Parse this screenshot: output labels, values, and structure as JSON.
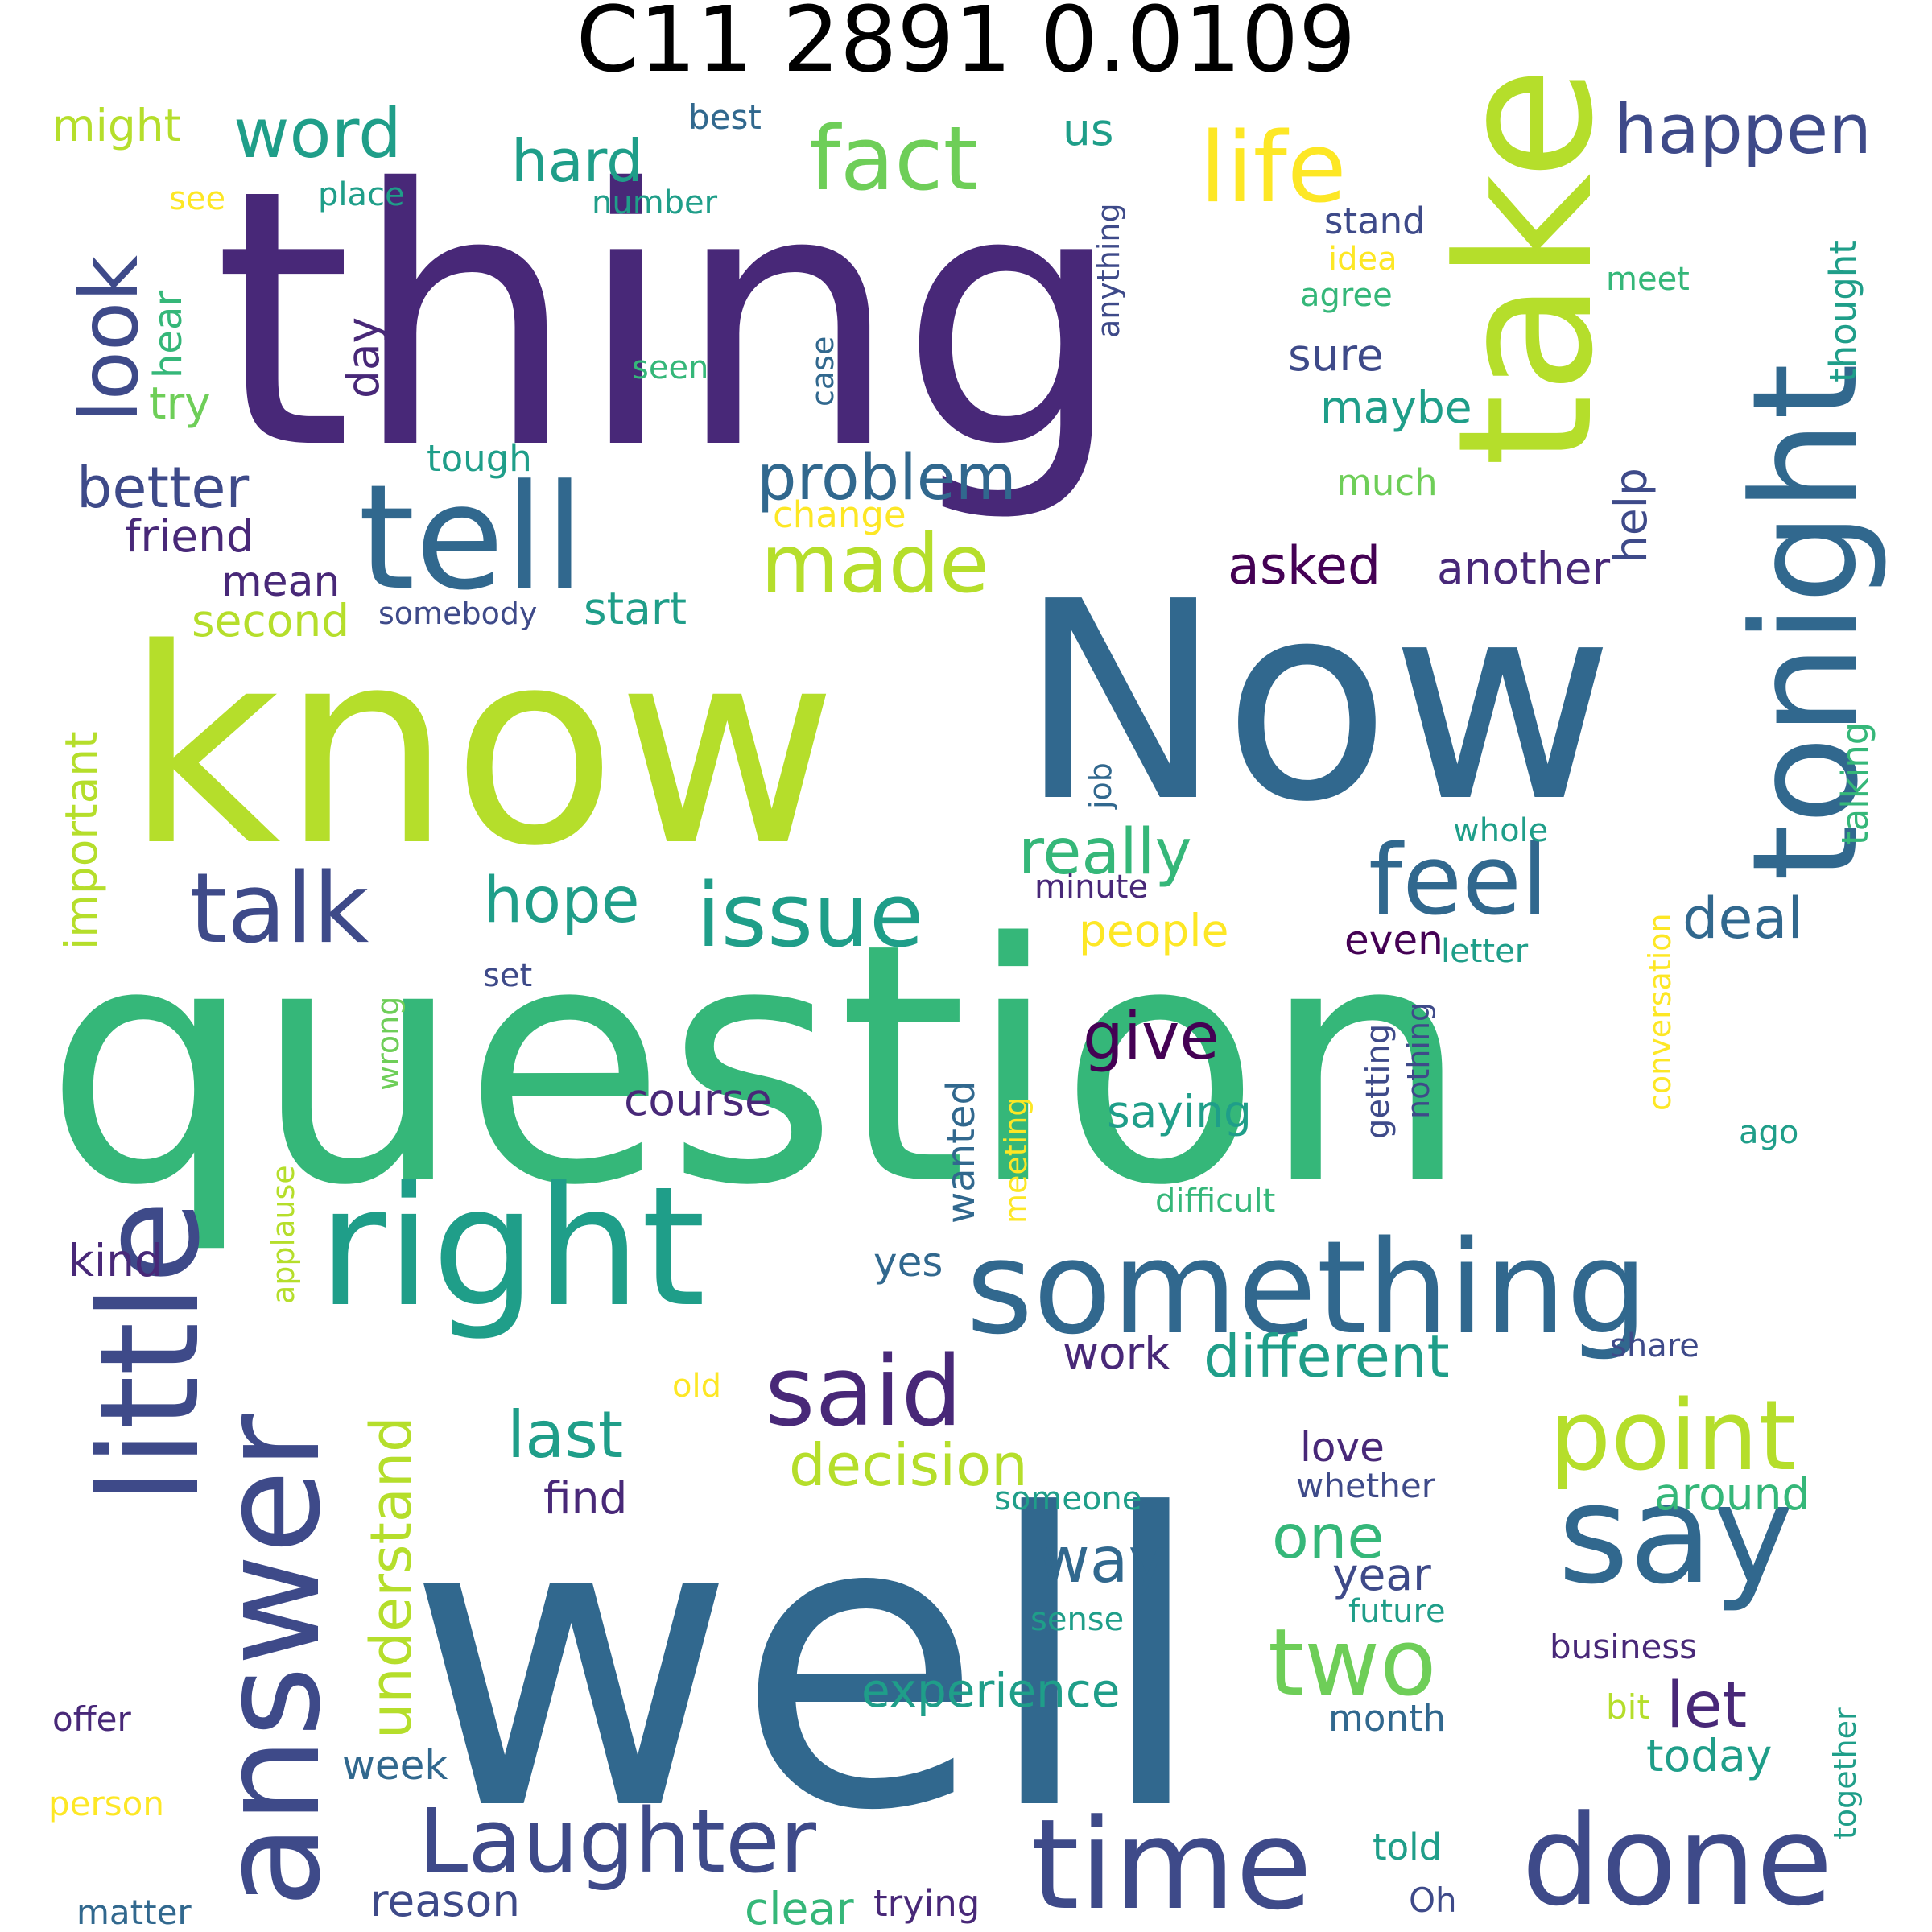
{
  "title": "C11 2891 0.0109",
  "colors": {
    "dark_purple": "#482878",
    "purple": "#440154",
    "indigo": "#3e4a89",
    "blue": "#31688e",
    "teal": "#26828e",
    "green_teal": "#1f9e89",
    "green": "#35b779",
    "light_green": "#6ece58",
    "lime": "#b5de2b",
    "yellow": "#fde725"
  },
  "words": [
    {
      "text": "thing",
      "color": "dark_purple"
    },
    {
      "text": "well",
      "color": "blue"
    },
    {
      "text": "question",
      "color": "green"
    },
    {
      "text": "know",
      "color": "lime"
    },
    {
      "text": "Now",
      "color": "blue"
    },
    {
      "text": "take",
      "color": "lime"
    },
    {
      "text": "tonight",
      "color": "blue"
    },
    {
      "text": "tell",
      "color": "blue"
    },
    {
      "text": "right",
      "color": "green_teal"
    },
    {
      "text": "something",
      "color": "blue"
    },
    {
      "text": "little",
      "color": "indigo"
    },
    {
      "text": "answer",
      "color": "indigo"
    },
    {
      "text": "say",
      "color": "blue"
    },
    {
      "text": "done",
      "color": "indigo"
    },
    {
      "text": "time",
      "color": "indigo"
    },
    {
      "text": "Laughter",
      "color": "indigo"
    },
    {
      "text": "life",
      "color": "yellow"
    },
    {
      "text": "fact",
      "color": "light_green"
    },
    {
      "text": "look",
      "color": "indigo"
    },
    {
      "text": "feel",
      "color": "blue"
    },
    {
      "text": "issue",
      "color": "green_teal"
    },
    {
      "text": "talk",
      "color": "indigo"
    },
    {
      "text": "point",
      "color": "lime"
    },
    {
      "text": "two",
      "color": "light_green"
    },
    {
      "text": "said",
      "color": "dark_purple"
    },
    {
      "text": "made",
      "color": "lime"
    },
    {
      "text": "happen",
      "color": "indigo"
    },
    {
      "text": "word",
      "color": "green_teal"
    },
    {
      "text": "problem",
      "color": "blue"
    },
    {
      "text": "understand",
      "color": "lime"
    },
    {
      "text": "different",
      "color": "green_teal"
    },
    {
      "text": "decision",
      "color": "lime"
    },
    {
      "text": "last",
      "color": "green_teal"
    },
    {
      "text": "really",
      "color": "green"
    },
    {
      "text": "hope",
      "color": "green_teal"
    },
    {
      "text": "better",
      "color": "indigo"
    },
    {
      "text": "give",
      "color": "purple"
    },
    {
      "text": "way",
      "color": "blue"
    },
    {
      "text": "one",
      "color": "green"
    },
    {
      "text": "let",
      "color": "dark_purple"
    },
    {
      "text": "hard",
      "color": "green_teal"
    },
    {
      "text": "important",
      "color": "lime"
    },
    {
      "text": "asked",
      "color": "purple"
    },
    {
      "text": "deal",
      "color": "blue"
    },
    {
      "text": "help",
      "color": "indigo"
    },
    {
      "text": "experience",
      "color": "green_teal"
    },
    {
      "text": "day",
      "color": "dark_purple"
    },
    {
      "text": "thought",
      "color": "green_teal"
    },
    {
      "text": "talking",
      "color": "green"
    },
    {
      "text": "today",
      "color": "green_teal"
    },
    {
      "text": "around",
      "color": "green"
    },
    {
      "text": "saying",
      "color": "green_teal"
    },
    {
      "text": "wanted",
      "color": "blue"
    },
    {
      "text": "course",
      "color": "dark_purple"
    },
    {
      "text": "sure",
      "color": "indigo"
    },
    {
      "text": "maybe",
      "color": "green_teal"
    },
    {
      "text": "another",
      "color": "dark_purple"
    },
    {
      "text": "people",
      "color": "yellow"
    },
    {
      "text": "work",
      "color": "dark_purple"
    },
    {
      "text": "reason",
      "color": "indigo"
    },
    {
      "text": "week",
      "color": "blue"
    },
    {
      "text": "year",
      "color": "indigo"
    },
    {
      "text": "love",
      "color": "dark_purple"
    },
    {
      "text": "find",
      "color": "dark_purple"
    },
    {
      "text": "clear",
      "color": "green"
    },
    {
      "text": "start",
      "color": "green_teal"
    },
    {
      "text": "second",
      "color": "lime"
    },
    {
      "text": "mean",
      "color": "dark_purple"
    },
    {
      "text": "friend",
      "color": "dark_purple"
    },
    {
      "text": "kind",
      "color": "dark_purple"
    },
    {
      "text": "yes",
      "color": "blue"
    },
    {
      "text": "even",
      "color": "purple"
    },
    {
      "text": "hear",
      "color": "green"
    },
    {
      "text": "try",
      "color": "light_green"
    },
    {
      "text": "might",
      "color": "lime"
    },
    {
      "text": "us",
      "color": "green_teal"
    },
    {
      "text": "conversation",
      "color": "yellow"
    },
    {
      "text": "trying",
      "color": "dark_purple"
    },
    {
      "text": "business",
      "color": "dark_purple"
    },
    {
      "text": "whether",
      "color": "indigo"
    },
    {
      "text": "tough",
      "color": "green_teal"
    },
    {
      "text": "much",
      "color": "light_green"
    },
    {
      "text": "change",
      "color": "yellow"
    },
    {
      "text": "somebody",
      "color": "indigo"
    },
    {
      "text": "anything",
      "color": "indigo"
    },
    {
      "text": "case",
      "color": "blue"
    },
    {
      "text": "seen",
      "color": "green"
    },
    {
      "text": "place",
      "color": "green_teal"
    },
    {
      "text": "see",
      "color": "yellow"
    },
    {
      "text": "number",
      "color": "green_teal"
    },
    {
      "text": "best",
      "color": "blue"
    },
    {
      "text": "stand",
      "color": "indigo"
    },
    {
      "text": "idea",
      "color": "yellow"
    },
    {
      "text": "agree",
      "color": "green"
    },
    {
      "text": "meet",
      "color": "green"
    },
    {
      "text": "job",
      "color": "blue"
    },
    {
      "text": "whole",
      "color": "green_teal"
    },
    {
      "text": "minute",
      "color": "dark_purple"
    },
    {
      "text": "letter",
      "color": "green_teal"
    },
    {
      "text": "set",
      "color": "indigo"
    },
    {
      "text": "wrong",
      "color": "light_green"
    },
    {
      "text": "meeting",
      "color": "yellow"
    },
    {
      "text": "getting",
      "color": "indigo"
    },
    {
      "text": "nothing",
      "color": "indigo"
    },
    {
      "text": "ago",
      "color": "green_teal"
    },
    {
      "text": "difficult",
      "color": "green"
    },
    {
      "text": "applause",
      "color": "lime"
    },
    {
      "text": "share",
      "color": "indigo"
    },
    {
      "text": "old",
      "color": "yellow"
    },
    {
      "text": "someone",
      "color": "green_teal"
    },
    {
      "text": "sense",
      "color": "green_teal"
    },
    {
      "text": "future",
      "color": "green_teal"
    },
    {
      "text": "month",
      "color": "blue"
    },
    {
      "text": "bit",
      "color": "lime"
    },
    {
      "text": "offer",
      "color": "dark_purple"
    },
    {
      "text": "person",
      "color": "yellow"
    },
    {
      "text": "matter",
      "color": "blue"
    },
    {
      "text": "together",
      "color": "green_teal"
    },
    {
      "text": "told",
      "color": "green_teal"
    },
    {
      "text": "Oh",
      "color": "indigo"
    }
  ]
}
